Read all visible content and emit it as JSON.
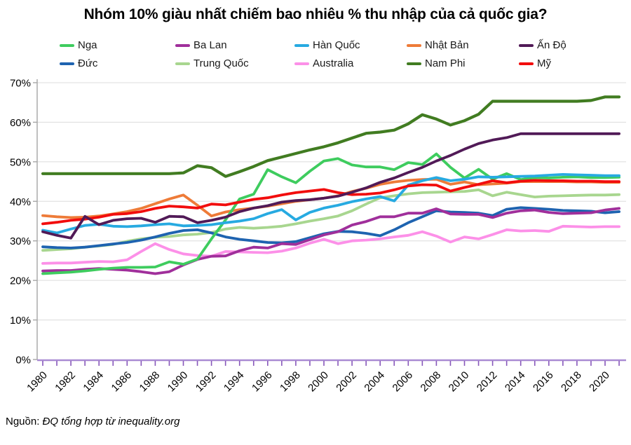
{
  "title": "Nhóm 10% giàu nhất chiếm bao nhiêu % thu nhập của cả quốc gia?",
  "source": {
    "prefix": "Nguồn: ",
    "text": "ĐQ tổng hợp từ inequality.org"
  },
  "colors": {
    "grid": "#DCDCDC",
    "y_axis": "#A6A6A6",
    "x_axis_line": "#A98BD3",
    "x_axis_tick": "#8757BA",
    "text": "#000000"
  },
  "chart_data": {
    "type": "line",
    "title": "Nhóm 10% giàu nhất chiếm bao nhiêu % thu nhập của cả quốc gia?",
    "xlabel": "",
    "ylabel": "",
    "ylim": [
      0,
      70
    ],
    "grid": "horizontal",
    "legend_position": "top",
    "y_ticks": [
      0,
      10,
      20,
      30,
      40,
      50,
      60,
      70
    ],
    "y_tick_labels": [
      "0%",
      "10%",
      "20%",
      "30%",
      "40%",
      "50%",
      "60%",
      "70%"
    ],
    "x_tick_labels": [
      1980,
      1982,
      1984,
      1986,
      1988,
      1990,
      1992,
      1994,
      1996,
      1998,
      2000,
      2002,
      2004,
      2006,
      2008,
      2010,
      2012,
      2014,
      2016,
      2018,
      2020
    ],
    "x": [
      1980,
      1981,
      1982,
      1983,
      1984,
      1985,
      1986,
      1987,
      1988,
      1989,
      1990,
      1991,
      1992,
      1993,
      1994,
      1995,
      1996,
      1997,
      1998,
      1999,
      2000,
      2001,
      2002,
      2003,
      2004,
      2005,
      2006,
      2007,
      2008,
      2009,
      2010,
      2011,
      2012,
      2013,
      2014,
      2015,
      2016,
      2017,
      2018,
      2019,
      2020,
      2021
    ],
    "draw_order": [
      6,
      7,
      5,
      1,
      3,
      0,
      2,
      9,
      4,
      8
    ],
    "series": [
      {
        "key": "nga",
        "name": "Nga",
        "color": "#3ECC5E",
        "values": [
          21.7,
          21.9,
          22.1,
          22.4,
          22.8,
          23.1,
          23.3,
          23.3,
          23.4,
          24.7,
          24.1,
          25.4,
          30.5,
          35.3,
          40.6,
          41.8,
          48.0,
          46.2,
          44.7,
          47.6,
          50.2,
          50.8,
          49.2,
          48.7,
          48.7,
          48.0,
          49.8,
          49.3,
          52.0,
          48.6,
          45.9,
          48.1,
          45.6,
          47.0,
          45.5,
          46.0,
          45.9,
          46.1,
          46.2,
          46.0,
          46.0,
          46.1
        ]
      },
      {
        "key": "ba-lan",
        "name": "Ba Lan",
        "color": "#A02F9B",
        "values": [
          22.4,
          22.5,
          22.5,
          22.8,
          23.0,
          22.8,
          22.6,
          22.2,
          21.7,
          22.2,
          23.9,
          25.3,
          26.1,
          26.2,
          27.5,
          28.4,
          28.2,
          29.3,
          29.1,
          30.3,
          31.5,
          32.3,
          34.0,
          34.9,
          36.1,
          36.1,
          37.0,
          37.0,
          38.1,
          36.8,
          36.7,
          36.7,
          35.9,
          37.0,
          37.6,
          37.8,
          37.2,
          36.9,
          37.0,
          37.1,
          37.8,
          38.2
        ]
      },
      {
        "key": "han-quoc",
        "name": "Hàn Quốc",
        "color": "#27AAE1",
        "values": [
          32.7,
          32.0,
          33.0,
          33.9,
          34.2,
          33.7,
          33.6,
          33.8,
          34.1,
          34.3,
          33.8,
          33.9,
          34.1,
          34.6,
          35.0,
          35.6,
          36.9,
          37.9,
          35.3,
          37.2,
          38.3,
          39.0,
          39.9,
          40.6,
          41.2,
          40.1,
          44.1,
          45.2,
          46.0,
          45.2,
          45.6,
          46.2,
          46.1,
          46.2,
          46.3,
          46.4,
          46.6,
          46.8,
          46.7,
          46.6,
          46.5,
          46.5
        ]
      },
      {
        "key": "nhat-ban",
        "name": "Nhật Bản",
        "color": "#EE7B38",
        "values": [
          36.4,
          36.1,
          35.9,
          36.0,
          36.3,
          36.8,
          37.4,
          38.2,
          39.4,
          40.6,
          41.6,
          39.0,
          36.3,
          37.3,
          37.9,
          38.3,
          38.8,
          39.4,
          40.0,
          40.4,
          40.8,
          41.4,
          42.5,
          43.3,
          44.3,
          44.9,
          45.3,
          45.5,
          45.6,
          44.3,
          44.9,
          44.2,
          44.4,
          44.6,
          45.0,
          45.0,
          45.0,
          45.0,
          44.9,
          44.9,
          44.8,
          44.8
        ]
      },
      {
        "key": "an-do",
        "name": "Ấn Độ",
        "color": "#511A57",
        "values": [
          32.3,
          31.4,
          30.7,
          36.2,
          34.1,
          35.2,
          35.6,
          35.7,
          34.7,
          36.2,
          36.1,
          34.6,
          35.2,
          36.0,
          37.4,
          38.3,
          38.9,
          39.8,
          40.2,
          40.4,
          40.8,
          41.3,
          42.3,
          43.4,
          44.8,
          45.9,
          47.3,
          48.6,
          50.2,
          51.6,
          53.2,
          54.6,
          55.5,
          56.1,
          57.1,
          57.1,
          57.1,
          57.1,
          57.1,
          57.1,
          57.1,
          57.1
        ]
      },
      {
        "key": "duc",
        "name": "Đức",
        "color": "#1E63B0",
        "values": [
          28.5,
          28.3,
          28.2,
          28.4,
          28.8,
          29.2,
          29.6,
          30.2,
          31.0,
          31.9,
          32.6,
          32.8,
          32.0,
          31.0,
          30.4,
          30.0,
          29.6,
          29.5,
          29.8,
          30.8,
          31.8,
          32.4,
          32.3,
          31.9,
          31.3,
          32.8,
          34.6,
          36.1,
          37.6,
          37.3,
          37.2,
          37.0,
          36.4,
          38.0,
          38.4,
          38.2,
          38.0,
          37.7,
          37.6,
          37.5,
          37.1,
          37.4
        ]
      },
      {
        "key": "trung-quoc",
        "name": "Trung Quốc",
        "color": "#A8D68F",
        "values": [
          27.6,
          27.8,
          28.0,
          28.4,
          28.7,
          29.1,
          29.9,
          30.5,
          30.9,
          31.1,
          31.5,
          31.7,
          32.1,
          33.0,
          33.4,
          33.2,
          33.4,
          33.7,
          34.3,
          35.0,
          35.6,
          36.3,
          37.6,
          39.3,
          40.9,
          41.4,
          41.9,
          42.2,
          42.3,
          42.4,
          42.5,
          42.9,
          41.4,
          42.3,
          41.7,
          41.1,
          41.3,
          41.4,
          41.5,
          41.6,
          41.6,
          41.7
        ]
      },
      {
        "key": "australia",
        "name": "Australia",
        "color": "#FC90E8",
        "values": [
          24.3,
          24.4,
          24.4,
          24.6,
          24.8,
          24.7,
          25.2,
          27.3,
          29.3,
          27.8,
          26.7,
          26.3,
          26.1,
          27.3,
          27.2,
          27.1,
          27.0,
          27.4,
          28.2,
          29.4,
          30.4,
          29.3,
          30.0,
          30.2,
          30.5,
          31.0,
          31.4,
          32.3,
          31.2,
          29.7,
          31.0,
          30.5,
          31.6,
          32.8,
          32.5,
          32.6,
          32.4,
          33.7,
          33.6,
          33.5,
          33.6,
          33.6
        ]
      },
      {
        "key": "nam-phi",
        "name": "Nam Phi",
        "color": "#417C21",
        "values": [
          47.0,
          47.0,
          47.0,
          47.0,
          47.0,
          47.0,
          47.0,
          47.0,
          47.0,
          47.0,
          47.2,
          49.0,
          48.5,
          46.3,
          47.5,
          48.8,
          50.3,
          51.2,
          52.1,
          53.0,
          53.8,
          54.8,
          56.0,
          57.2,
          57.5,
          58.0,
          59.6,
          61.9,
          60.8,
          59.3,
          60.4,
          62.0,
          65.3,
          65.3,
          65.3,
          65.3,
          65.3,
          65.3,
          65.3,
          65.5,
          66.4,
          66.4
        ]
      },
      {
        "key": "my",
        "name": "Mỹ",
        "color": "#F20D0D",
        "values": [
          34.3,
          34.7,
          35.2,
          35.5,
          36.0,
          36.7,
          36.9,
          37.4,
          38.2,
          38.8,
          38.6,
          38.3,
          39.3,
          39.1,
          39.8,
          40.5,
          40.9,
          41.6,
          42.2,
          42.6,
          43.0,
          42.2,
          41.7,
          41.8,
          42.1,
          42.9,
          43.9,
          44.2,
          44.1,
          42.6,
          43.5,
          44.3,
          45.2,
          44.7,
          45.1,
          45.3,
          45.2,
          45.2,
          45.1,
          45.1,
          45.0,
          45.0
        ]
      }
    ]
  }
}
